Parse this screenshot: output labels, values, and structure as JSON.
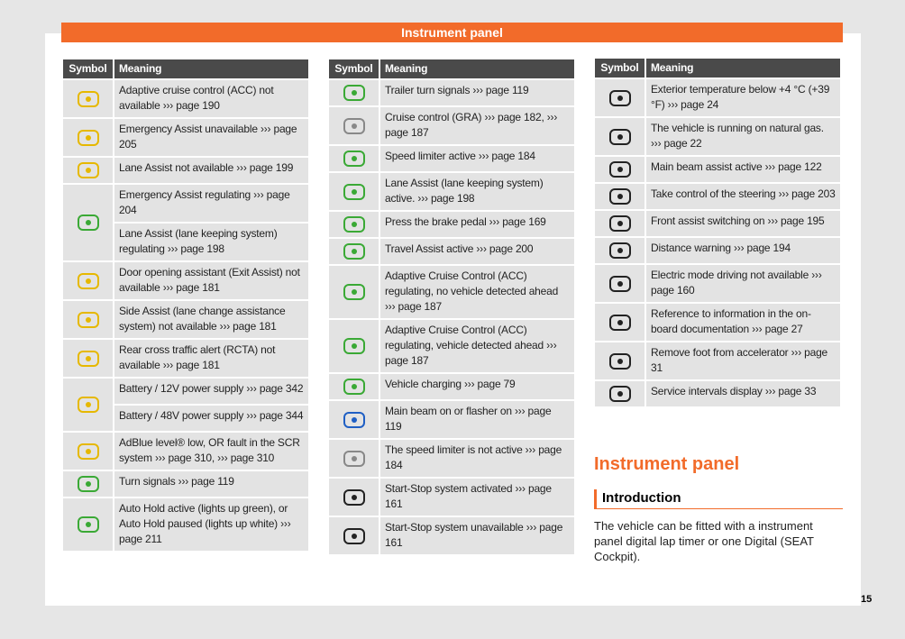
{
  "header": {
    "title": "Instrument panel"
  },
  "tables": [
    {
      "header": [
        "Symbol",
        "Meaning"
      ],
      "rows": [
        [
          "Adaptive cruise control (ACC) not available ››› page 190"
        ],
        [
          "Emergency Assist unavailable ››› page 205"
        ],
        [
          "Lane Assist not available ››› page 199"
        ],
        [
          "Emergency Assist regulating ››› page 204",
          "Lane Assist (lane keeping system) regulating ››› page 198"
        ],
        [
          "Door opening assistant (Exit Assist) not available ››› page 181"
        ],
        [
          "Side Assist (lane change assistance system) not available ››› page 181"
        ],
        [
          "Rear cross traffic alert (RCTA) not available ››› page 181"
        ],
        [
          "Battery / 12V power supply ››› page 342",
          "Battery / 48V power supply ››› page 344"
        ],
        [
          "AdBlue level® low, OR fault in the SCR system ››› page 310, ››› page 310"
        ],
        [
          "Turn signals ››› page 119"
        ],
        [
          "Auto Hold active (lights up green), or Auto Hold paused (lights up white) ››› page 211"
        ]
      ]
    },
    {
      "header": [
        "Symbol",
        "Meaning"
      ],
      "rows": [
        [
          "Trailer turn signals ››› page 119"
        ],
        [
          "Cruise control (GRA) ››› page 182, ››› page 187"
        ],
        [
          "Speed limiter active ››› page 184"
        ],
        [
          "Lane Assist (lane keeping system) active. ››› page 198"
        ],
        [
          "Press the brake pedal ››› page 169"
        ],
        [
          "Travel Assist active ››› page 200"
        ],
        [
          "Adaptive Cruise Control (ACC) regulating, no vehicle detected ahead ››› page 187"
        ],
        [
          "Adaptive Cruise Control (ACC) regulating, vehicle detected ahead ››› page 187"
        ],
        [
          "Vehicle charging ››› page 79"
        ],
        [
          "Main beam on or flasher on ››› page 119"
        ],
        [
          "The speed limiter is not active ››› page 184"
        ],
        [
          "Start-Stop system activated ››› page 161"
        ],
        [
          "Start-Stop system unavailable ››› page 161"
        ]
      ]
    },
    {
      "header": [
        "Symbol",
        "Meaning"
      ],
      "rows": [
        [
          "Exterior temperature below +4 °C (+39 °F) ››› page 24"
        ],
        [
          "The vehicle is running on natural gas. ››› page 22"
        ],
        [
          "Main beam assist active ››› page 122"
        ],
        [
          "Take control of the steering ››› page 203"
        ],
        [
          "Front assist switching on ››› page 195"
        ],
        [
          "Distance warning ››› page 194"
        ],
        [
          "Electric mode driving not available ››› page 160"
        ],
        [
          "Reference to information in the on-board documentation ››› page 27"
        ],
        [
          "Remove foot from accelerator ››› page 31"
        ],
        [
          "Service intervals display ››› page 33"
        ]
      ]
    }
  ],
  "section": {
    "title": "Instrument panel",
    "subtitle": "Introduction",
    "text": "The vehicle can be fitted with a instrument panel digital lap timer or one Digital (SEAT Cockpit)."
  },
  "page_number": "15"
}
